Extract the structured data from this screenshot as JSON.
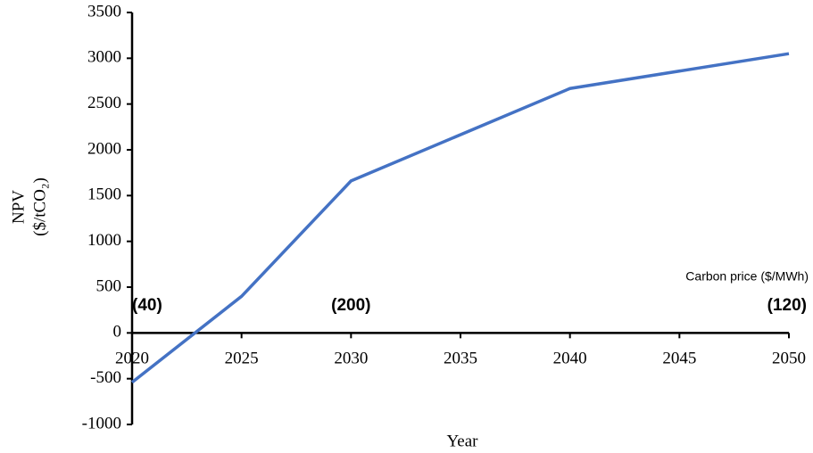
{
  "chart_data": {
    "type": "line",
    "x": [
      2020,
      2025,
      2030,
      2040,
      2050
    ],
    "series": [
      {
        "name": "NPV",
        "color": "#4472c4",
        "values": [
          -540,
          400,
          1660,
          2670,
          3050
        ]
      }
    ],
    "xlim": [
      2020,
      2050
    ],
    "xticks": [
      2020,
      2025,
      2030,
      2035,
      2040,
      2045,
      2050
    ],
    "ylim": [
      -1000,
      3500
    ],
    "yticks": [
      -1000,
      -500,
      0,
      500,
      1000,
      1500,
      2000,
      2500,
      3000,
      3500
    ],
    "xlabel": "Year",
    "ylabel": [
      "NPV",
      "($/tCO₂)"
    ],
    "annotation_title": "Carbon price ($/MWh)",
    "annotations": [
      {
        "x": 2020,
        "text": "(40)"
      },
      {
        "x": 2030,
        "text": "(200)"
      },
      {
        "x": 2050,
        "text": "(120)"
      }
    ],
    "annotation_color": "#c00000"
  }
}
